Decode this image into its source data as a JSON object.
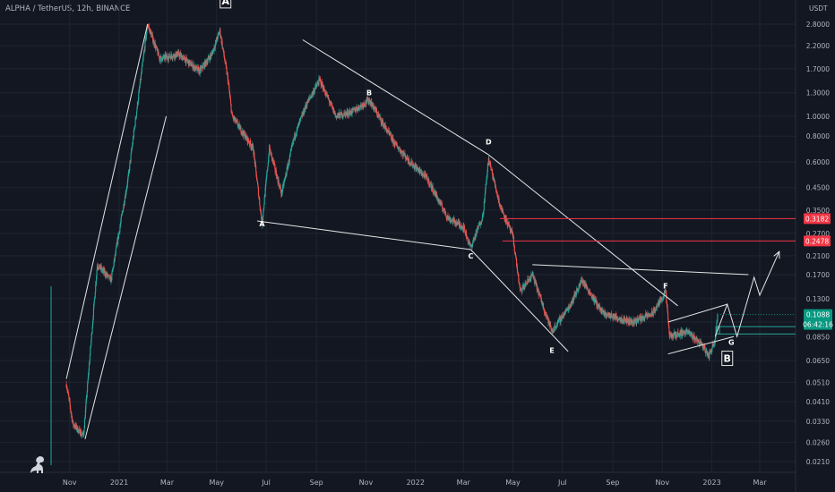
{
  "header": {
    "symbol": "ALPHA / TetherUS, 12h, BINANCE",
    "unit": "USDT"
  },
  "colors": {
    "background": "#131722",
    "grid": "#1f2430",
    "text": "#b2b5be",
    "up": "#26a69a",
    "down": "#ef5350",
    "annotation": "#e6e6e6",
    "level_line": "#f23645",
    "current_price_bg": "#089981"
  },
  "logo": {
    "icon": "dinosaur-icon"
  },
  "chart_data": {
    "type": "candlestick",
    "title": "ALPHA / TetherUS, 12h, BINANCE",
    "scale": "log",
    "y_ticks": [
      "2.8000",
      "2.2000",
      "1.7000",
      "1.3000",
      "1.0000",
      "0.8000",
      "0.6000",
      "0.4500",
      "0.3500",
      "0.2700",
      "0.2100",
      "0.1700",
      "0.1300",
      "0.1000",
      "0.0850",
      "0.0650",
      "0.0510",
      "0.0410",
      "0.0330",
      "0.0260",
      "0.0210"
    ],
    "x_ticks": [
      "Nov",
      "2021",
      "Mar",
      "May",
      "Jul",
      "Sep",
      "Nov",
      "2022",
      "Mar",
      "May",
      "Jul",
      "Sep",
      "Nov",
      "2023",
      "Mar"
    ],
    "price_path": [
      {
        "date": "2020-10-28",
        "price": 0.05
      },
      {
        "date": "2020-11-05",
        "price": 0.032
      },
      {
        "date": "2020-11-18",
        "price": 0.028
      },
      {
        "date": "2020-12-05",
        "price": 0.19
      },
      {
        "date": "2020-12-22",
        "price": 0.16
      },
      {
        "date": "2021-01-12",
        "price": 0.5
      },
      {
        "date": "2021-02-05",
        "price": 2.8
      },
      {
        "date": "2021-02-20",
        "price": 1.9
      },
      {
        "date": "2021-03-15",
        "price": 2.0
      },
      {
        "date": "2021-04-10",
        "price": 1.65
      },
      {
        "date": "2021-04-25",
        "price": 2.0
      },
      {
        "date": "2021-05-05",
        "price": 2.6
      },
      {
        "date": "2021-05-15",
        "price": 1.5
      },
      {
        "date": "2021-05-20",
        "price": 1.0
      },
      {
        "date": "2021-06-15",
        "price": 0.7
      },
      {
        "date": "2021-06-26",
        "price": 0.3
      },
      {
        "date": "2021-07-05",
        "price": 0.7
      },
      {
        "date": "2021-07-20",
        "price": 0.42
      },
      {
        "date": "2021-08-05",
        "price": 0.8
      },
      {
        "date": "2021-08-20",
        "price": 1.15
      },
      {
        "date": "2021-09-05",
        "price": 1.5
      },
      {
        "date": "2021-09-25",
        "price": 1.0
      },
      {
        "date": "2021-10-15",
        "price": 1.05
      },
      {
        "date": "2021-11-05",
        "price": 1.2
      },
      {
        "date": "2021-12-05",
        "price": 0.75
      },
      {
        "date": "2021-12-25",
        "price": 0.6
      },
      {
        "date": "2022-01-15",
        "price": 0.5
      },
      {
        "date": "2022-02-10",
        "price": 0.32
      },
      {
        "date": "2022-03-01",
        "price": 0.29
      },
      {
        "date": "2022-03-10",
        "price": 0.23
      },
      {
        "date": "2022-03-25",
        "price": 0.33
      },
      {
        "date": "2022-04-01",
        "price": 0.62
      },
      {
        "date": "2022-04-15",
        "price": 0.37
      },
      {
        "date": "2022-05-01",
        "price": 0.26
      },
      {
        "date": "2022-05-10",
        "price": 0.14
      },
      {
        "date": "2022-05-25",
        "price": 0.17
      },
      {
        "date": "2022-06-18",
        "price": 0.09
      },
      {
        "date": "2022-07-10",
        "price": 0.12
      },
      {
        "date": "2022-07-25",
        "price": 0.16
      },
      {
        "date": "2022-08-20",
        "price": 0.11
      },
      {
        "date": "2022-09-25",
        "price": 0.1
      },
      {
        "date": "2022-10-20",
        "price": 0.11
      },
      {
        "date": "2022-11-05",
        "price": 0.14
      },
      {
        "date": "2022-11-10",
        "price": 0.085
      },
      {
        "date": "2022-12-01",
        "price": 0.09
      },
      {
        "date": "2022-12-20",
        "price": 0.078
      },
      {
        "date": "2022-12-28",
        "price": 0.068
      },
      {
        "date": "2023-01-05",
        "price": 0.082
      },
      {
        "date": "2023-01-08",
        "price": 0.1088
      }
    ],
    "wave_labels": [
      {
        "label": "A",
        "date": "2021-06-26",
        "price": 0.3,
        "boxed": false
      },
      {
        "label": "B",
        "date": "2021-11-05",
        "price": 1.3,
        "boxed": false
      },
      {
        "label": "C",
        "date": "2022-03-10",
        "price": 0.21,
        "boxed": false
      },
      {
        "label": "D",
        "date": "2022-04-01",
        "price": 0.75,
        "boxed": false
      },
      {
        "label": "E",
        "date": "2022-06-18",
        "price": 0.073,
        "boxed": false
      },
      {
        "label": "F",
        "date": "2022-11-05",
        "price": 0.15,
        "boxed": false
      },
      {
        "label": "G",
        "date": "2023-01-25",
        "price": 0.08,
        "boxed": false
      },
      {
        "label": "A",
        "date": "2021-05-12",
        "price": 3.6,
        "boxed": true
      },
      {
        "label": "B",
        "date": "2023-01-20",
        "price": 0.066,
        "boxed": true
      }
    ],
    "trendlines": [
      {
        "from": {
          "date": "2020-10-28",
          "price": 0.053
        },
        "to": {
          "date": "2021-02-05",
          "price": 2.8
        }
      },
      {
        "from": {
          "date": "2020-11-20",
          "price": 0.027
        },
        "to": {
          "date": "2021-02-28",
          "price": 1.0
        }
      },
      {
        "from": {
          "date": "2021-06-20",
          "price": 0.31
        },
        "to": {
          "date": "2022-03-10",
          "price": 0.225
        }
      },
      {
        "from": {
          "date": "2021-08-15",
          "price": 2.35
        },
        "to": {
          "date": "2022-04-01",
          "price": 0.65
        }
      },
      {
        "from": {
          "date": "2022-04-01",
          "price": 0.65
        },
        "to": {
          "date": "2022-11-20",
          "price": 0.12
        }
      },
      {
        "from": {
          "date": "2022-03-10",
          "price": 0.225
        },
        "to": {
          "date": "2022-07-08",
          "price": 0.072
        }
      },
      {
        "from": {
          "date": "2022-05-25",
          "price": 0.19
        },
        "to": {
          "date": "2023-02-15",
          "price": 0.17
        }
      },
      {
        "from": {
          "date": "2022-11-08",
          "price": 0.1
        },
        "to": {
          "date": "2023-01-20",
          "price": 0.122
        }
      },
      {
        "from": {
          "date": "2022-11-08",
          "price": 0.07
        },
        "to": {
          "date": "2023-01-28",
          "price": 0.085
        }
      }
    ],
    "projection": [
      {
        "date": "2023-01-05",
        "price": 0.085
      },
      {
        "date": "2023-01-20",
        "price": 0.122
      },
      {
        "date": "2023-02-01",
        "price": 0.085
      },
      {
        "date": "2023-02-22",
        "price": 0.165
      },
      {
        "date": "2023-03-01",
        "price": 0.135
      },
      {
        "date": "2023-03-25",
        "price": 0.22
      }
    ],
    "levels": [
      {
        "price": 0.3182,
        "label": "0.3182",
        "from": "2022-04-15"
      },
      {
        "price": 0.2478,
        "label": "0.2478",
        "from": "2022-04-18"
      }
    ],
    "current": {
      "price": 0.1088,
      "label": "0.1088",
      "countdown": "06:42:16"
    },
    "side_boxes": [
      {
        "price": 0.095,
        "from": "2023-01-10"
      },
      {
        "price": 0.0875,
        "from": "2023-01-05"
      }
    ]
  }
}
